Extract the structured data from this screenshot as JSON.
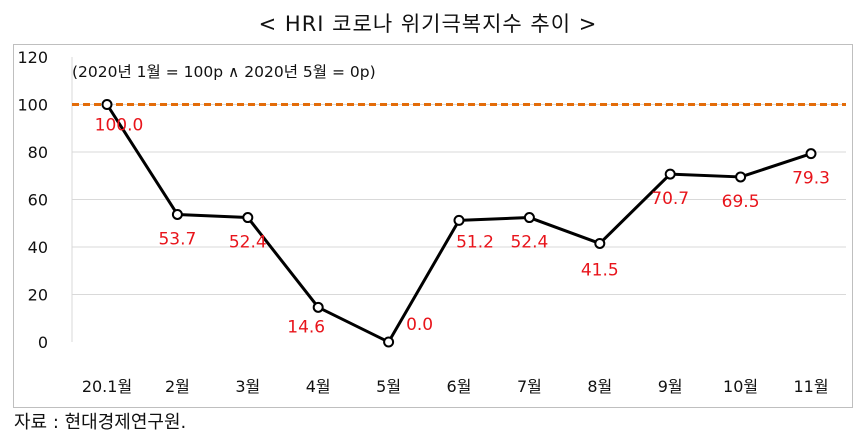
{
  "title": "< HRI 코로나 위기극복지수 추이 >",
  "source": "자료 : 현대경제연구원.",
  "chart_data": {
    "type": "line",
    "title": "< HRI 코로나 위기극복지수 추이 >",
    "note": "(2020년 1월 = 100p ∧ 2020년 5월 = 0p)",
    "categories": [
      "20.1월",
      "2월",
      "3월",
      "4월",
      "5월",
      "6월",
      "7월",
      "8월",
      "9월",
      "10월",
      "11월"
    ],
    "series": [
      {
        "values": [
          100.0,
          53.7,
          52.4,
          14.6,
          0.0,
          51.2,
          52.4,
          41.5,
          70.7,
          69.5,
          79.3
        ]
      }
    ],
    "data_labels": [
      "100.0",
      "53.7",
      "52.4",
      "14.6",
      "0.0",
      "51.2",
      "52.4",
      "41.5",
      "70.7",
      "69.5",
      "79.3"
    ],
    "yticks": [
      "0",
      "20",
      "40",
      "60",
      "80",
      "100",
      "120"
    ],
    "ylim": [
      0,
      120
    ],
    "reference_line": {
      "value": 100,
      "style": "dashed",
      "color": "#e36c09"
    },
    "line_color": "#000000",
    "label_color": "#e8141b",
    "grid": true,
    "xlabel": "",
    "ylabel": ""
  }
}
